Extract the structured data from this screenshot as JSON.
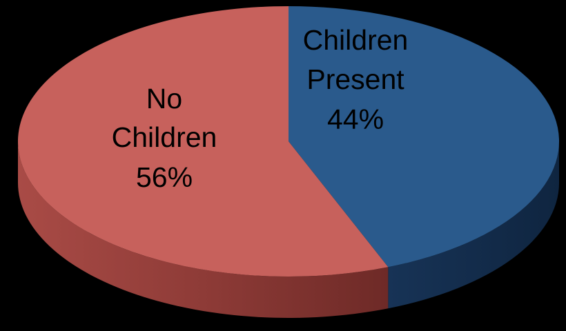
{
  "chart_data": {
    "type": "pie",
    "title": "",
    "style": "3d-exploded-none",
    "legend": "none",
    "slices": [
      {
        "label_lines": [
          "Children",
          "Present",
          "44%"
        ],
        "category": "Children Present",
        "value": 44,
        "color": "#2a5a8c"
      },
      {
        "label_lines": [
          "No",
          "Children",
          "56%"
        ],
        "category": "No Children",
        "value": 56,
        "color": "#c7615c"
      }
    ]
  }
}
